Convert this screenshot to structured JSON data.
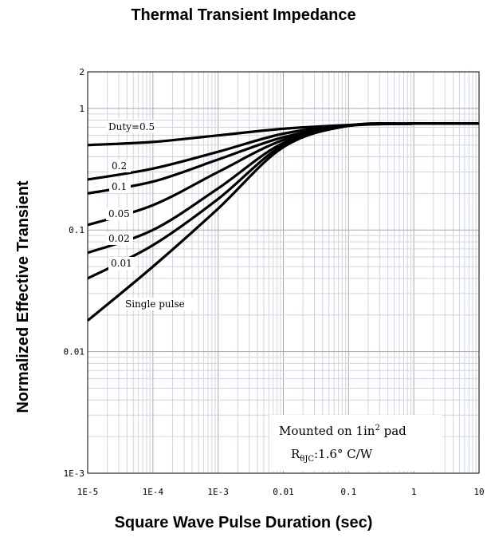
{
  "chart_data": {
    "type": "line",
    "title": "Thermal Transient Impedance",
    "xlabel": "Square Wave Pulse Duration (sec)",
    "ylabel": "Normalized Effective Transient",
    "x_scale": "log",
    "y_scale": "log",
    "xlim": [
      1e-05,
      10
    ],
    "ylim": [
      0.001,
      2
    ],
    "x_ticks": [
      "1E-5",
      "1E-4",
      "1E-3",
      "0.01",
      "0.1",
      "1",
      "10"
    ],
    "y_ticks": [
      "2",
      "1",
      "0.1",
      "0.01",
      "1E-3"
    ],
    "grid": true,
    "series": [
      {
        "name": "Duty=0.5",
        "x": [
          1e-05,
          0.0001,
          0.001,
          0.01,
          0.1,
          1,
          10
        ],
        "y": [
          0.5,
          0.53,
          0.6,
          0.68,
          0.73,
          0.75,
          0.75
        ]
      },
      {
        "name": "0.2",
        "x": [
          1e-05,
          0.0001,
          0.001,
          0.01,
          0.1,
          1,
          10
        ],
        "y": [
          0.26,
          0.32,
          0.44,
          0.62,
          0.73,
          0.75,
          0.75
        ]
      },
      {
        "name": "0.1",
        "x": [
          1e-05,
          0.0001,
          0.001,
          0.01,
          0.1,
          1,
          10
        ],
        "y": [
          0.2,
          0.25,
          0.38,
          0.58,
          0.72,
          0.75,
          0.75
        ]
      },
      {
        "name": "0.05",
        "x": [
          1e-05,
          0.0001,
          0.001,
          0.01,
          0.1,
          1,
          10
        ],
        "y": [
          0.11,
          0.16,
          0.3,
          0.55,
          0.72,
          0.75,
          0.75
        ]
      },
      {
        "name": "0.02",
        "x": [
          1e-05,
          0.0001,
          0.001,
          0.01,
          0.1,
          1,
          10
        ],
        "y": [
          0.065,
          0.1,
          0.22,
          0.52,
          0.72,
          0.75,
          0.75
        ]
      },
      {
        "name": "0.01",
        "x": [
          1e-05,
          0.0001,
          0.001,
          0.01,
          0.1,
          1,
          10
        ],
        "y": [
          0.04,
          0.075,
          0.18,
          0.5,
          0.72,
          0.75,
          0.75
        ]
      },
      {
        "name": "Single pulse",
        "x": [
          1e-05,
          0.0001,
          0.001,
          0.01,
          0.1,
          1,
          10
        ],
        "y": [
          0.018,
          0.05,
          0.15,
          0.48,
          0.72,
          0.75,
          0.75
        ]
      }
    ],
    "annotations": {
      "line1_prefix": "Mounted on 1in",
      "line1_sup": "2",
      "line1_suffix": " pad",
      "line2_prefix": "R",
      "line2_sub": "θJC",
      "line2_suffix": ":1.6°  C/W"
    }
  }
}
